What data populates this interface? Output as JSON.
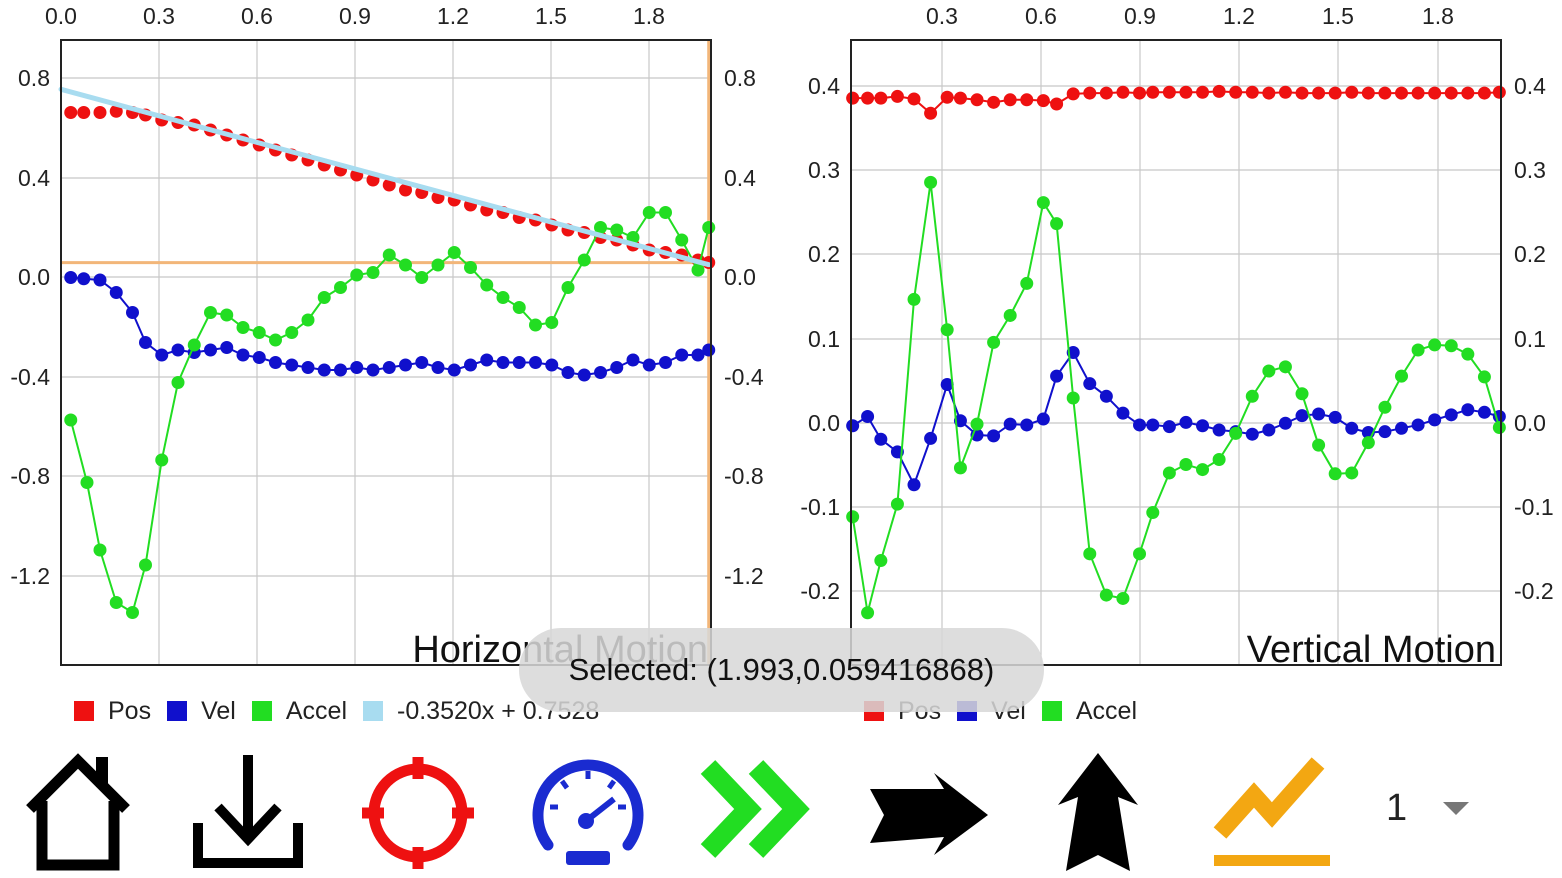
{
  "chart_data": [
    {
      "type": "scatter",
      "title": "Horizontal Motion",
      "x_ticks": [
        "0.0",
        "0.3",
        "0.6",
        "0.9",
        "1.2",
        "1.5",
        "1.8"
      ],
      "y_ticks": [
        "0.8",
        "0.4",
        "0.0",
        "-0.4",
        "-0.8",
        "-1.2"
      ],
      "xlim": [
        0,
        2.0
      ],
      "ylim": [
        -1.55,
        0.95
      ],
      "crosshair": {
        "x": 1.993,
        "y": 0.059416868
      },
      "series": [
        {
          "name": "Pos",
          "color": "#ee1111",
          "mode": "markers",
          "x": [
            0.03,
            0.07,
            0.12,
            0.17,
            0.22,
            0.26,
            0.31,
            0.36,
            0.41,
            0.46,
            0.51,
            0.56,
            0.61,
            0.66,
            0.71,
            0.76,
            0.81,
            0.86,
            0.91,
            0.96,
            1.01,
            1.06,
            1.11,
            1.16,
            1.21,
            1.26,
            1.31,
            1.36,
            1.41,
            1.46,
            1.51,
            1.56,
            1.61,
            1.66,
            1.71,
            1.76,
            1.81,
            1.86,
            1.91,
            1.96,
            1.993
          ],
          "y": [
            0.66,
            0.66,
            0.66,
            0.665,
            0.66,
            0.65,
            0.63,
            0.62,
            0.61,
            0.59,
            0.57,
            0.55,
            0.53,
            0.51,
            0.49,
            0.47,
            0.45,
            0.43,
            0.41,
            0.39,
            0.37,
            0.35,
            0.34,
            0.32,
            0.31,
            0.29,
            0.27,
            0.26,
            0.24,
            0.23,
            0.21,
            0.19,
            0.18,
            0.16,
            0.15,
            0.13,
            0.11,
            0.1,
            0.09,
            0.07,
            0.06
          ]
        },
        {
          "name": "Vel",
          "color": "#1010cc",
          "mode": "lines+markers",
          "x": [
            0.03,
            0.07,
            0.12,
            0.17,
            0.22,
            0.26,
            0.31,
            0.36,
            0.41,
            0.46,
            0.51,
            0.56,
            0.61,
            0.66,
            0.71,
            0.76,
            0.81,
            0.86,
            0.91,
            0.96,
            1.01,
            1.06,
            1.11,
            1.16,
            1.21,
            1.26,
            1.31,
            1.36,
            1.41,
            1.46,
            1.51,
            1.56,
            1.61,
            1.66,
            1.71,
            1.76,
            1.81,
            1.86,
            1.91,
            1.96,
            1.993
          ],
          "y": [
            0.0,
            -0.005,
            -0.01,
            -0.06,
            -0.14,
            -0.26,
            -0.31,
            -0.29,
            -0.3,
            -0.29,
            -0.28,
            -0.31,
            -0.32,
            -0.34,
            -0.35,
            -0.36,
            -0.37,
            -0.37,
            -0.36,
            -0.37,
            -0.36,
            -0.35,
            -0.34,
            -0.36,
            -0.37,
            -0.35,
            -0.33,
            -0.34,
            -0.34,
            -0.34,
            -0.35,
            -0.38,
            -0.39,
            -0.38,
            -0.36,
            -0.33,
            -0.35,
            -0.34,
            -0.31,
            -0.31,
            -0.29
          ]
        },
        {
          "name": "Accel",
          "color": "#22dd22",
          "mode": "lines+markers",
          "x": [
            0.03,
            0.08,
            0.12,
            0.17,
            0.22,
            0.26,
            0.31,
            0.36,
            0.41,
            0.46,
            0.51,
            0.56,
            0.61,
            0.66,
            0.71,
            0.76,
            0.81,
            0.86,
            0.91,
            0.96,
            1.01,
            1.06,
            1.11,
            1.16,
            1.21,
            1.26,
            1.31,
            1.36,
            1.41,
            1.46,
            1.51,
            1.56,
            1.61,
            1.66,
            1.71,
            1.76,
            1.81,
            1.86,
            1.91,
            1.96,
            1.993
          ],
          "y": [
            -0.57,
            -0.82,
            -1.09,
            -1.3,
            -1.34,
            -1.15,
            -0.73,
            -0.42,
            -0.27,
            -0.14,
            -0.15,
            -0.2,
            -0.22,
            -0.25,
            -0.22,
            -0.17,
            -0.08,
            -0.04,
            0.01,
            0.02,
            0.09,
            0.05,
            0.0,
            0.05,
            0.1,
            0.04,
            -0.03,
            -0.08,
            -0.12,
            -0.19,
            -0.18,
            -0.04,
            0.07,
            0.2,
            0.19,
            0.16,
            0.26,
            0.26,
            0.15,
            0.03,
            0.2
          ]
        },
        {
          "name": "-0.3520x + 0.7528",
          "color": "#a8dcf0",
          "mode": "line",
          "x": [
            0.0,
            1.993
          ],
          "y": [
            0.7528,
            0.0513
          ]
        }
      ]
    },
    {
      "type": "scatter",
      "title": "Vertical Motion",
      "x_ticks": [
        "0.3",
        "0.6",
        "0.9",
        "1.2",
        "1.5",
        "1.8"
      ],
      "y_ticks": [
        "0.4",
        "0.3",
        "0.2",
        "0.1",
        "0.0",
        "-0.1",
        "-0.2"
      ],
      "xlim": [
        0.0,
        1.96
      ],
      "ylim": [
        -0.287,
        0.455
      ],
      "series": [
        {
          "name": "Pos",
          "color": "#ee1111",
          "mode": "lines+markers",
          "x": [
            0.005,
            0.05,
            0.09,
            0.14,
            0.19,
            0.24,
            0.29,
            0.33,
            0.38,
            0.43,
            0.48,
            0.53,
            0.58,
            0.62,
            0.67,
            0.72,
            0.77,
            0.82,
            0.87,
            0.91,
            0.96,
            1.01,
            1.06,
            1.11,
            1.16,
            1.21,
            1.26,
            1.31,
            1.36,
            1.41,
            1.46,
            1.51,
            1.56,
            1.61,
            1.66,
            1.71,
            1.76,
            1.81,
            1.86,
            1.91,
            1.955
          ],
          "y": [
            0.386,
            0.386,
            0.386,
            0.388,
            0.385,
            0.368,
            0.387,
            0.386,
            0.384,
            0.381,
            0.384,
            0.384,
            0.383,
            0.379,
            0.391,
            0.392,
            0.392,
            0.393,
            0.392,
            0.393,
            0.393,
            0.393,
            0.393,
            0.394,
            0.393,
            0.393,
            0.392,
            0.393,
            0.392,
            0.392,
            0.392,
            0.393,
            0.392,
            0.392,
            0.392,
            0.392,
            0.392,
            0.392,
            0.392,
            0.392,
            0.393
          ]
        },
        {
          "name": "Vel",
          "color": "#1010cc",
          "mode": "lines+markers",
          "x": [
            0.005,
            0.05,
            0.09,
            0.14,
            0.19,
            0.24,
            0.29,
            0.33,
            0.38,
            0.43,
            0.48,
            0.53,
            0.58,
            0.62,
            0.67,
            0.72,
            0.77,
            0.82,
            0.87,
            0.91,
            0.96,
            1.01,
            1.06,
            1.11,
            1.16,
            1.21,
            1.26,
            1.31,
            1.36,
            1.41,
            1.46,
            1.51,
            1.56,
            1.61,
            1.66,
            1.71,
            1.76,
            1.81,
            1.86,
            1.91,
            1.955
          ],
          "y": [
            -0.003,
            0.008,
            -0.019,
            -0.034,
            -0.073,
            -0.018,
            0.046,
            0.003,
            -0.014,
            -0.015,
            -0.001,
            -0.002,
            0.005,
            0.056,
            0.084,
            0.047,
            0.032,
            0.012,
            -0.002,
            -0.002,
            -0.004,
            0.001,
            -0.003,
            -0.008,
            -0.01,
            -0.013,
            -0.008,
            0.0,
            0.009,
            0.011,
            0.007,
            -0.006,
            -0.011,
            -0.01,
            -0.006,
            -0.002,
            0.004,
            0.01,
            0.016,
            0.013,
            0.008
          ]
        },
        {
          "name": "Accel",
          "color": "#22dd22",
          "mode": "lines+markers",
          "x": [
            0.005,
            0.05,
            0.09,
            0.14,
            0.19,
            0.24,
            0.29,
            0.33,
            0.38,
            0.43,
            0.48,
            0.53,
            0.58,
            0.62,
            0.67,
            0.72,
            0.77,
            0.82,
            0.87,
            0.91,
            0.96,
            1.01,
            1.06,
            1.11,
            1.16,
            1.21,
            1.26,
            1.31,
            1.36,
            1.41,
            1.46,
            1.51,
            1.56,
            1.61,
            1.66,
            1.71,
            1.76,
            1.81,
            1.86,
            1.91,
            1.955
          ],
          "y": [
            -0.111,
            -0.225,
            -0.163,
            -0.096,
            0.147,
            0.286,
            0.111,
            -0.053,
            -0.001,
            0.096,
            0.128,
            0.166,
            0.262,
            0.237,
            0.03,
            -0.155,
            -0.204,
            -0.208,
            -0.155,
            -0.106,
            -0.059,
            -0.049,
            -0.055,
            -0.043,
            -0.012,
            0.032,
            0.062,
            0.067,
            0.035,
            -0.026,
            -0.06,
            -0.059,
            -0.023,
            0.019,
            0.056,
            0.087,
            0.093,
            0.092,
            0.082,
            0.055,
            -0.005
          ]
        }
      ]
    }
  ],
  "legends": {
    "horizontal": [
      {
        "label": "Pos",
        "color": "#ee1111"
      },
      {
        "label": "Vel",
        "color": "#1010cc"
      },
      {
        "label": "Accel",
        "color": "#22dd22"
      },
      {
        "label": "-0.3520x + 0.7528",
        "color": "#a8dcf0"
      }
    ],
    "vertical": [
      {
        "label": "Pos",
        "color": "#ee1111"
      },
      {
        "label": "Vel",
        "color": "#1010cc"
      },
      {
        "label": "Accel",
        "color": "#22dd22"
      }
    ]
  },
  "toast": {
    "text": "Selected: (1.993,0.059416868)"
  },
  "toolbar": {
    "tools": [
      {
        "icon": "home-icon"
      },
      {
        "icon": "download-icon"
      },
      {
        "icon": "crosshair-target-icon",
        "color": "#ee1111"
      },
      {
        "icon": "speedometer-icon",
        "color": "#1a2bd0"
      },
      {
        "icon": "fast-forward-chevrons-icon",
        "color": "#22dd22"
      },
      {
        "icon": "right-arrow-icon"
      },
      {
        "icon": "up-arrow-icon"
      },
      {
        "icon": "trend-line-icon",
        "color": "#f3a712"
      }
    ],
    "series_select": {
      "value": "1"
    }
  }
}
